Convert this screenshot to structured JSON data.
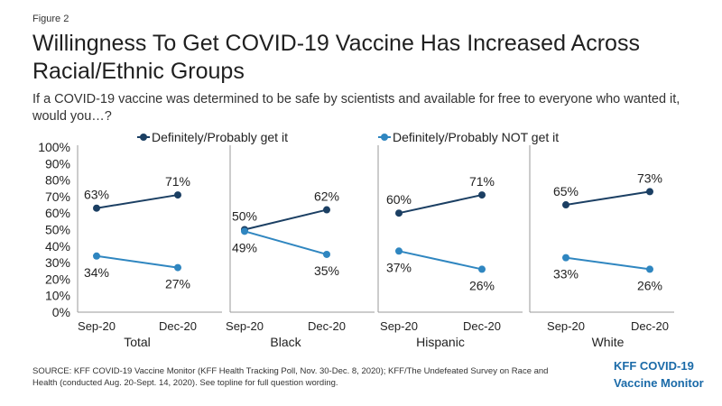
{
  "figure_label": "Figure 2",
  "title": "Willingness To Get COVID-19 Vaccine Has Increased Across Racial/Ethnic Groups",
  "subtitle": "If a COVID-19 vaccine was determined to be safe by scientists and available for free to everyone who wanted it, would you…?",
  "source": "SOURCE: KFF COVID-19 Vaccine Monitor (KFF Health Tracking Poll, Nov. 30-Dec. 8, 2020); KFF/The Undefeated Survey on Race and Health (conducted Aug. 20-Sept. 14, 2020). See topline for full question wording.",
  "brand": {
    "line1": "KFF COVID-19",
    "line2": "Vaccine Monitor"
  },
  "colors": {
    "get_it": "#1b3f63",
    "not_get_it": "#2f86c0",
    "axis": "#999999"
  },
  "chart_data": {
    "type": "line",
    "ylim": [
      0,
      100
    ],
    "yticks": [
      "0%",
      "10%",
      "20%",
      "30%",
      "40%",
      "50%",
      "60%",
      "70%",
      "80%",
      "90%",
      "100%"
    ],
    "x": [
      "Sep-20",
      "Dec-20"
    ],
    "legend": [
      {
        "name": "Definitely/Probably get it",
        "color": "#1b3f63"
      },
      {
        "name": "Definitely/Probably NOT get it",
        "color": "#2f86c0"
      }
    ],
    "panels": [
      {
        "group": "Total",
        "series": [
          {
            "name": "Definitely/Probably get it",
            "values": [
              63,
              71
            ],
            "labels": [
              "63%",
              "71%"
            ]
          },
          {
            "name": "Definitely/Probably NOT get it",
            "values": [
              34,
              27
            ],
            "labels": [
              "34%",
              "27%"
            ]
          }
        ]
      },
      {
        "group": "Black",
        "series": [
          {
            "name": "Definitely/Probably get it",
            "values": [
              50,
              62
            ],
            "labels": [
              "50%",
              "62%"
            ]
          },
          {
            "name": "Definitely/Probably NOT get it",
            "values": [
              49,
              35
            ],
            "labels": [
              "49%",
              "35%"
            ]
          }
        ]
      },
      {
        "group": "Hispanic",
        "series": [
          {
            "name": "Definitely/Probably get it",
            "values": [
              60,
              71
            ],
            "labels": [
              "60%",
              "71%"
            ]
          },
          {
            "name": "Definitely/Probably NOT get it",
            "values": [
              37,
              26
            ],
            "labels": [
              "37%",
              "26%"
            ]
          }
        ]
      },
      {
        "group": "White",
        "series": [
          {
            "name": "Definitely/Probably get it",
            "values": [
              65,
              73
            ],
            "labels": [
              "65%",
              "73%"
            ]
          },
          {
            "name": "Definitely/Probably NOT get it",
            "values": [
              33,
              26
            ],
            "labels": [
              "33%",
              "26%"
            ]
          }
        ]
      }
    ]
  }
}
